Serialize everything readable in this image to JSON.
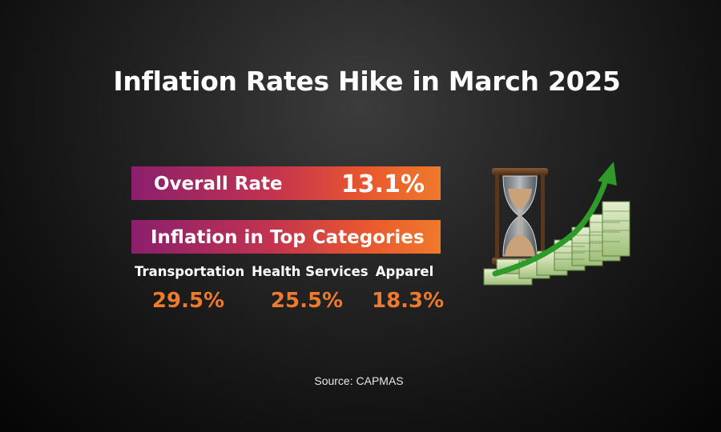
{
  "title": "Inflation Rates Hike in March 2025",
  "overall": {
    "label": "Overall Rate",
    "value": "13.1%"
  },
  "categories_header": "Inflation in Top Categories",
  "categories": [
    {
      "name": "Transportation",
      "value": "29.5%"
    },
    {
      "name": "Health Services",
      "value": "25.5%"
    },
    {
      "name": "Apparel",
      "value": "18.3%"
    }
  ],
  "source": "Source: CAPMAS",
  "colors": {
    "bar_start": "#8a1f6e",
    "bar_end": "#f07a2a",
    "value_accent": "#ee7a2e",
    "arrow": "#2e9a2a",
    "money": "#cfe3b0"
  },
  "illustration": {
    "icons": [
      "hourglass-icon",
      "money-stack-icon",
      "growth-arrow-icon"
    ]
  }
}
